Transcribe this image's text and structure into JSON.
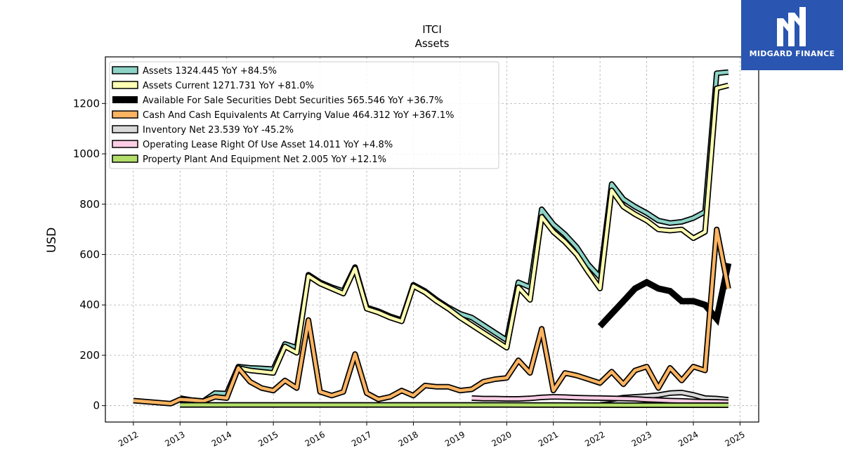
{
  "brand": {
    "name": "MIDGARD FINANCE",
    "logo_icon": "midgard-m-logo-icon",
    "bg_color": "#2a55b0"
  },
  "chart_data": {
    "type": "area",
    "title": "ITCI",
    "subtitle": "Assets",
    "ylabel": "USD",
    "xlabel": "",
    "ylim": [
      -65,
      1385
    ],
    "xlim": [
      2011.4,
      2025.4
    ],
    "yticks": [
      0,
      200,
      400,
      600,
      800,
      1000,
      1200
    ],
    "xticks": [
      2012,
      2013,
      2014,
      2015,
      2016,
      2017,
      2018,
      2019,
      2020,
      2021,
      2022,
      2023,
      2024,
      2025
    ],
    "grid": true,
    "legend_position": "top-left",
    "series": [
      {
        "name": "Assets",
        "legend": "Assets  1324.445 YoY +84.5%",
        "color": "#8dd3c7",
        "x": [
          2013.0,
          2013.25,
          2013.5,
          2013.75,
          2014.0,
          2014.25,
          2014.5,
          2014.75,
          2015.0,
          2015.25,
          2015.5,
          2015.75,
          2016.0,
          2016.25,
          2016.5,
          2016.75,
          2017.0,
          2017.25,
          2017.5,
          2017.75,
          2018.0,
          2018.25,
          2018.5,
          2018.75,
          2019.0,
          2019.25,
          2019.5,
          2019.75,
          2020.0,
          2020.25,
          2020.5,
          2020.75,
          2021.0,
          2021.25,
          2021.5,
          2021.75,
          2022.0,
          2022.25,
          2022.5,
          2022.75,
          2023.0,
          2023.25,
          2023.5,
          2023.75,
          2024.0,
          2024.25,
          2024.5,
          2024.75
        ],
        "y": [
          30,
          22,
          18,
          50,
          48,
          155,
          150,
          148,
          145,
          245,
          230,
          520,
          490,
          470,
          455,
          550,
          390,
          375,
          355,
          340,
          480,
          455,
          420,
          390,
          365,
          350,
          320,
          290,
          260,
          490,
          470,
          780,
          720,
          680,
          630,
          560,
          510,
          880,
          820,
          790,
          765,
          735,
          725,
          730,
          745,
          770,
          1320,
          1324.445
        ]
      },
      {
        "name": "Assets Current",
        "legend": "Assets Current  1271.731 YoY +81.0%",
        "color": "#ffffb3",
        "x": [
          2014.25,
          2014.5,
          2014.75,
          2015.0,
          2015.25,
          2015.5,
          2015.75,
          2016.0,
          2016.25,
          2016.5,
          2016.75,
          2017.0,
          2017.25,
          2017.5,
          2017.75,
          2018.0,
          2018.25,
          2018.5,
          2018.75,
          2019.0,
          2019.25,
          2019.5,
          2019.75,
          2020.0,
          2020.25,
          2020.5,
          2020.75,
          2021.0,
          2021.25,
          2021.5,
          2021.75,
          2022.0,
          2022.25,
          2022.5,
          2022.75,
          2023.0,
          2023.25,
          2023.5,
          2023.75,
          2024.0,
          2024.25,
          2024.5,
          2024.75
        ],
        "y": [
          150,
          140,
          135,
          130,
          235,
          210,
          515,
          485,
          465,
          445,
          545,
          385,
          370,
          350,
          335,
          475,
          450,
          415,
          385,
          350,
          320,
          290,
          260,
          230,
          470,
          420,
          750,
          690,
          650,
          600,
          530,
          465,
          855,
          790,
          760,
          735,
          700,
          695,
          700,
          665,
          690,
          1260,
          1271.731
        ]
      },
      {
        "name": "Available For Sale Securities Debt Securities",
        "legend": "Available For Sale Securities Debt Securities  565.546 YoY +36.7%",
        "color": "#000000",
        "x": [
          2022.0,
          2022.25,
          2022.5,
          2022.75,
          2023.0,
          2023.25,
          2023.5,
          2023.75,
          2024.0,
          2024.25,
          2024.5,
          2024.75
        ],
        "y": [
          315,
          365,
          415,
          465,
          490,
          465,
          455,
          415,
          415,
          400,
          345,
          565.546
        ]
      },
      {
        "name": "Cash And Cash Equivalents At Carrying Value",
        "legend": "Cash And Cash Equivalents At Carrying Value  464.312 YoY +367.1%",
        "color": "#fdb462",
        "x": [
          2012.0,
          2012.8,
          2013.0,
          2013.25,
          2013.5,
          2013.75,
          2014.0,
          2014.25,
          2014.5,
          2014.75,
          2015.0,
          2015.25,
          2015.5,
          2015.75,
          2016.0,
          2016.25,
          2016.5,
          2016.75,
          2017.0,
          2017.25,
          2017.5,
          2017.75,
          2018.0,
          2018.25,
          2018.5,
          2018.75,
          2019.0,
          2019.25,
          2019.5,
          2019.75,
          2020.0,
          2020.25,
          2020.5,
          2020.75,
          2021.0,
          2021.25,
          2021.5,
          2021.75,
          2022.0,
          2022.25,
          2022.5,
          2022.75,
          2023.0,
          2023.25,
          2023.5,
          2023.75,
          2024.0,
          2024.25,
          2024.5,
          2024.75
        ],
        "y": [
          20,
          8,
          25,
          22,
          18,
          35,
          30,
          150,
          95,
          70,
          60,
          100,
          70,
          340,
          55,
          40,
          55,
          205,
          50,
          25,
          35,
          60,
          40,
          80,
          75,
          75,
          60,
          65,
          95,
          105,
          110,
          180,
          130,
          305,
          60,
          130,
          120,
          105,
          90,
          135,
          85,
          140,
          155,
          70,
          150,
          100,
          155,
          140,
          700,
          464.312
        ]
      },
      {
        "name": "Inventory Net",
        "legend": "Inventory Net  23.539 YoY -45.2%",
        "color": "#d9d9d9",
        "x": [
          2022.0,
          2022.25,
          2022.5,
          2022.75,
          2023.0,
          2023.25,
          2023.5,
          2023.75,
          2024.0,
          2024.25,
          2024.5,
          2024.75
        ],
        "y": [
          20,
          25,
          32,
          35,
          38,
          42,
          50,
          52,
          43,
          30,
          28,
          23.539
        ]
      },
      {
        "name": "Operating Lease Right Of Use Asset",
        "legend": "Operating Lease Right Of Use Asset  14.011 YoY +4.8%",
        "color": "#fccde5",
        "x": [
          2019.25,
          2019.5,
          2019.75,
          2020.0,
          2020.25,
          2020.5,
          2020.75,
          2021.0,
          2021.25,
          2021.5,
          2021.75,
          2022.0,
          2022.25,
          2022.5,
          2022.75,
          2023.0,
          2023.25,
          2023.5,
          2023.75,
          2024.0,
          2024.25,
          2024.5,
          2024.75
        ],
        "y": [
          30,
          28,
          28,
          27,
          27,
          29,
          33,
          35,
          34,
          32,
          31,
          30,
          29,
          28,
          27,
          24,
          22,
          20,
          19,
          17,
          16,
          15,
          14.011
        ]
      },
      {
        "name": "Property Plant And Equipment Net",
        "legend": "Property Plant And Equipment Net  2.005 YoY +12.1%",
        "color": "#b3de69",
        "x": [
          2013.0,
          2014.0,
          2015.0,
          2016.0,
          2017.0,
          2018.0,
          2019.0,
          2020.0,
          2021.0,
          2022.0,
          2023.0,
          2024.0,
          2024.75
        ],
        "y": [
          3,
          3,
          3,
          3,
          3,
          3,
          3,
          3,
          2.5,
          2.2,
          2,
          2,
          2.005
        ]
      }
    ]
  }
}
